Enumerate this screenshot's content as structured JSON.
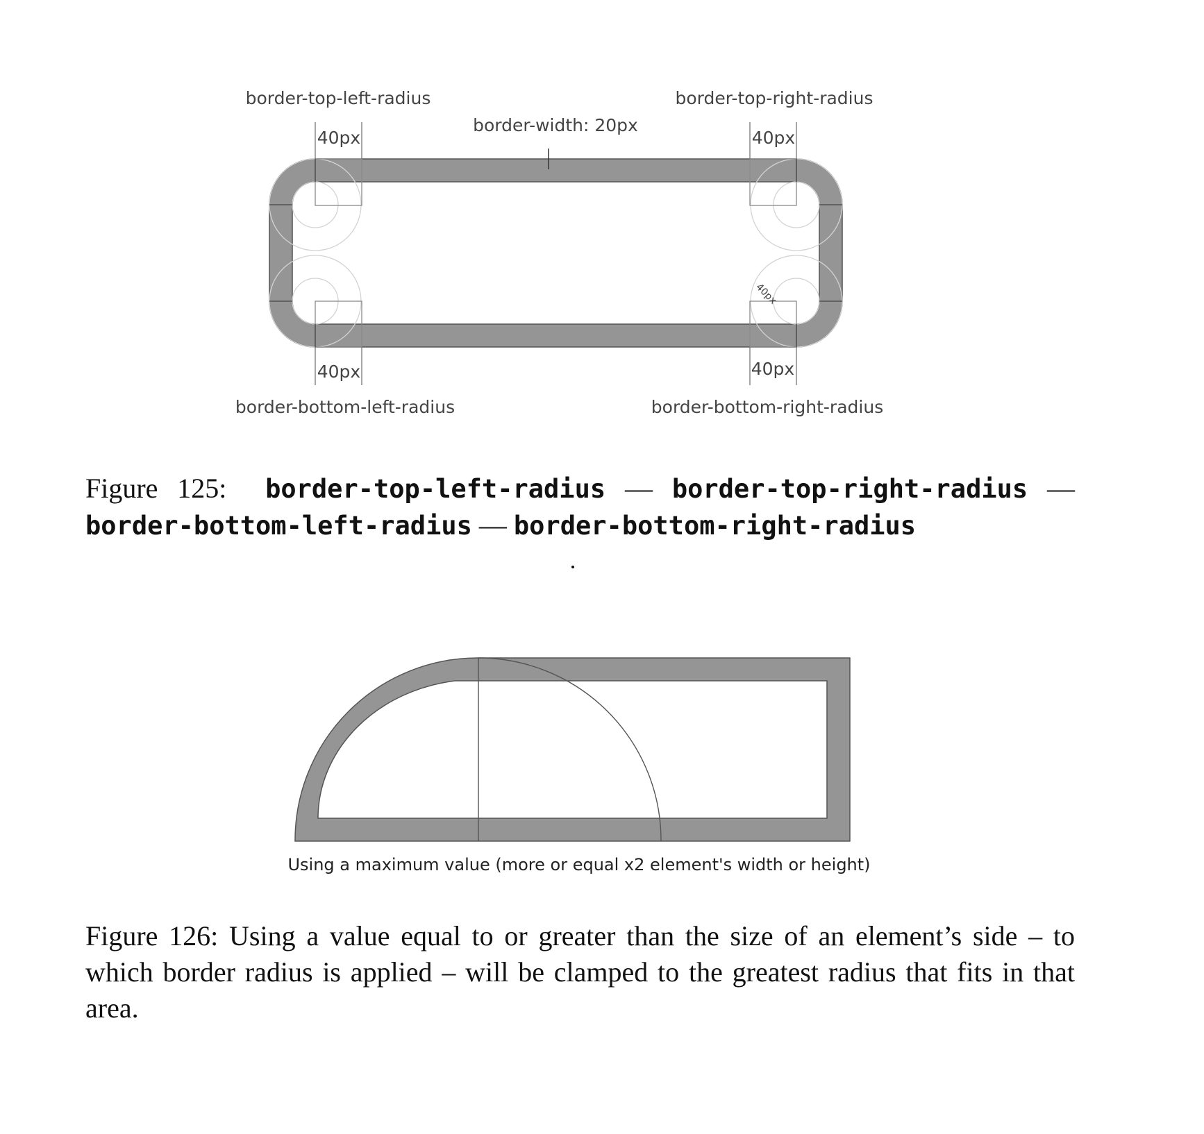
{
  "figure125": {
    "labels": {
      "top_left": "border-top-left-radius",
      "top_right": "border-top-right-radius",
      "bottom_left": "border-bottom-left-radius",
      "bottom_right": "border-bottom-right-radius",
      "border_width": "border-width: 20px",
      "tl_value": "40px",
      "tr_value": "40px",
      "bl_value": "40px",
      "br_value": "40px",
      "diag_value": "40px"
    },
    "caption": {
      "prefix": "Figure 125:",
      "term1": "border-top-left-radius",
      "term2": "border-top-right-radius",
      "term3": "border-bottom-left-radius",
      "term4": "border-bottom-right-radius",
      "sep": "—"
    }
  },
  "figure126": {
    "diagram_caption": "Using a maximum value (more or equal x2 element's width or height)",
    "caption": "Figure 126: Using a value equal to or greater than the size of an element’s side – to which border radius is applied – will be clamped to the greatest radius that fits in that area."
  },
  "colors": {
    "border_fill": "#959595",
    "outline": "#555555",
    "guide": "#d0d0d0"
  }
}
